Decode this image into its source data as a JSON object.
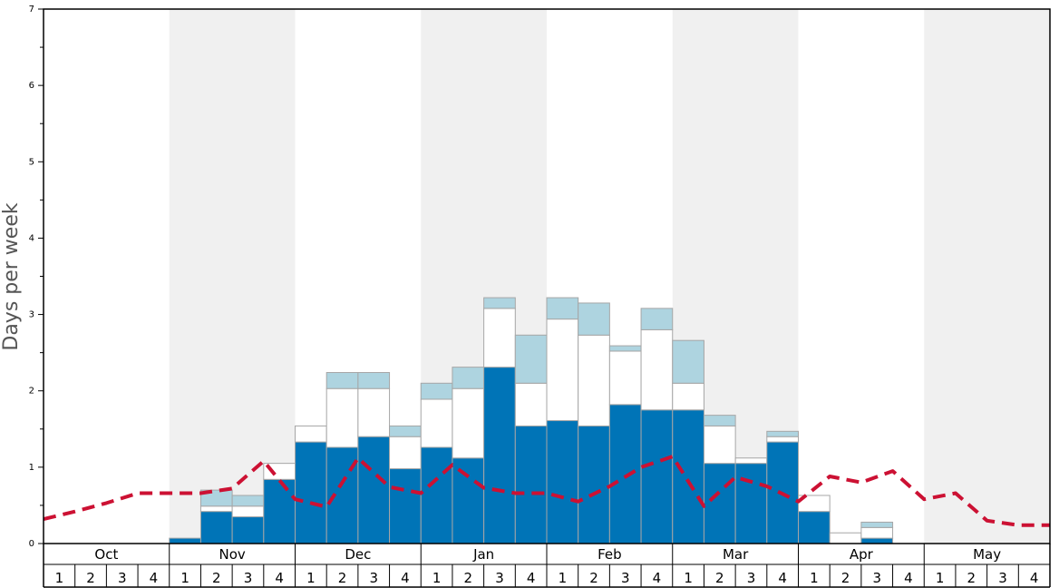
{
  "chart_data": {
    "type": "bar",
    "ylabel": "Days per week",
    "ylim": [
      0,
      7
    ],
    "yticks": [
      "0",
      "1",
      "2",
      "3",
      "4",
      "5",
      "6",
      "7"
    ],
    "months": [
      "Oct",
      "Nov",
      "Dec",
      "Jan",
      "Feb",
      "Mar",
      "Apr",
      "May"
    ],
    "weeks": [
      "1",
      "2",
      "3",
      "4"
    ],
    "shaded_months": [
      "Nov",
      "Jan",
      "Mar",
      "May"
    ],
    "colors": {
      "dark": "#0074b7",
      "white": "#ffffff",
      "light": "#aed4e0",
      "line": "#cc1133",
      "shade": "#f0f0f0"
    },
    "series": [
      {
        "values": [
          0,
          0,
          0,
          0,
          0.07,
          0.42,
          0.35,
          0.84,
          1.33,
          1.26,
          1.4,
          0.98,
          1.26,
          1.12,
          2.31,
          1.54,
          1.61,
          1.54,
          1.82,
          1.75,
          1.75,
          1.05,
          1.05,
          1.33,
          0.42,
          0,
          0.07,
          0,
          0,
          0,
          0,
          0
        ]
      },
      {
        "values": [
          0,
          0,
          0,
          0,
          0,
          0.07,
          0.14,
          0.21,
          0.21,
          0.77,
          0.63,
          0.42,
          0.63,
          0.91,
          0.77,
          0.56,
          1.33,
          1.19,
          0.7,
          1.05,
          0.35,
          0.49,
          0.07,
          0.07,
          0.21,
          0.14,
          0.14,
          0,
          0,
          0,
          0,
          0
        ]
      },
      {
        "values": [
          0,
          0,
          0,
          0,
          0,
          0.21,
          0.14,
          0,
          0,
          0.21,
          0.21,
          0.14,
          0.21,
          0.28,
          0.14,
          0.63,
          0.28,
          0.42,
          0.07,
          0.28,
          0.56,
          0.14,
          0,
          0.07,
          0,
          0,
          0.07,
          0,
          0,
          0,
          0,
          0
        ]
      },
      {
        "type": "line",
        "style": "dashed",
        "values": [
          0.32,
          0.42,
          0.53,
          0.66,
          0.66,
          0.66,
          0.72,
          1.08,
          0.58,
          0.48,
          1.12,
          0.74,
          0.66,
          1.03,
          0.73,
          0.66,
          0.66,
          0.55,
          0.75,
          1.0,
          1.14,
          0.49,
          0.87,
          0.75,
          0.55,
          0.88,
          0.8,
          0.95,
          0.58,
          0.66,
          0.3,
          0.24,
          0.24
        ]
      }
    ]
  }
}
